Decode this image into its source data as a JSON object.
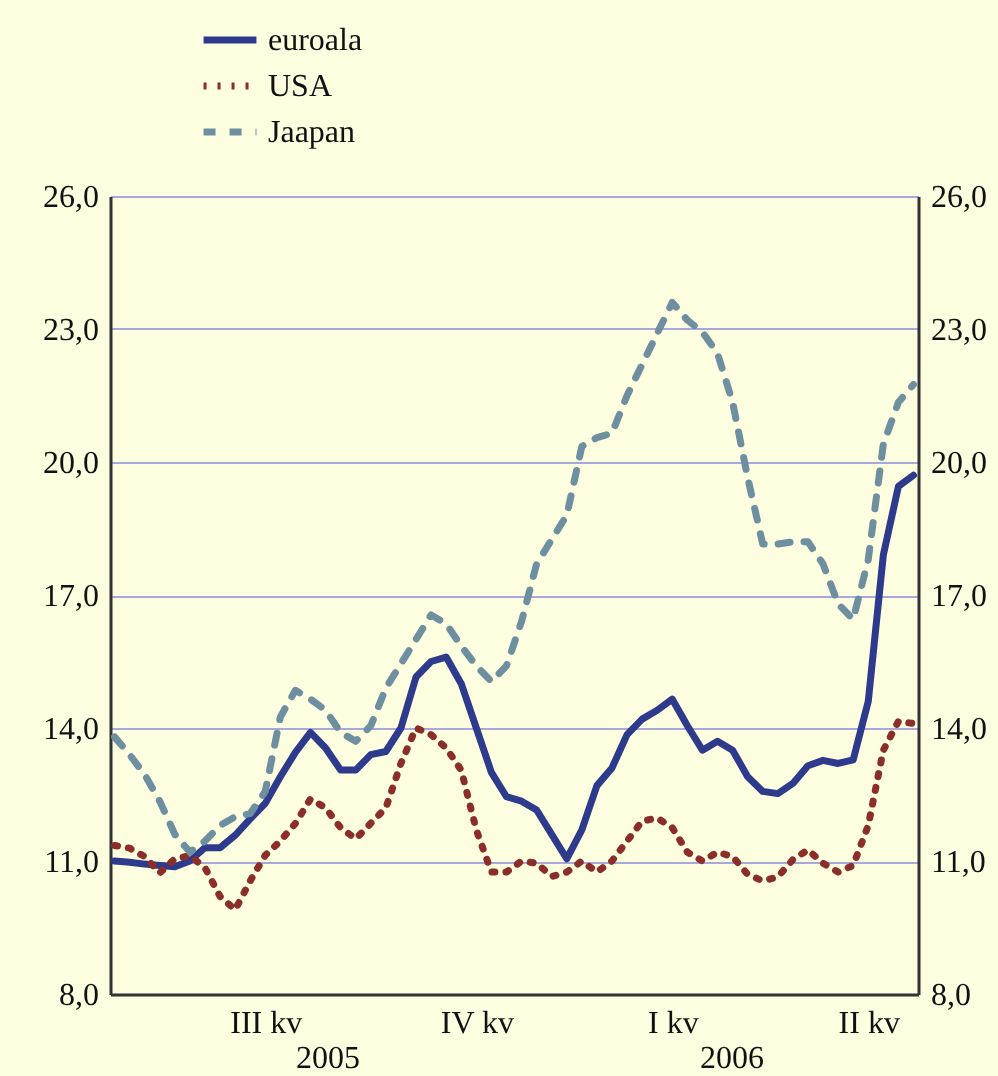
{
  "chart_data": {
    "type": "line",
    "categories": [
      null,
      null,
      null,
      null,
      null,
      null,
      null,
      null,
      null,
      null,
      "III kv",
      null,
      null,
      null,
      null,
      null,
      null,
      null,
      null,
      null,
      null,
      null,
      null,
      null,
      "IV kv",
      null,
      null,
      null,
      null,
      null,
      null,
      null,
      null,
      null,
      null,
      null,
      null,
      "I kv",
      null,
      null,
      null,
      null,
      null,
      null,
      null,
      null,
      null,
      null,
      null,
      null,
      "II kv",
      null,
      null,
      null
    ],
    "ylim": [
      8,
      26
    ],
    "yticks": [
      {
        "value": 8,
        "label": "8,0"
      },
      {
        "value": 11,
        "label": "11,0"
      },
      {
        "value": 14,
        "label": "14,0"
      },
      {
        "value": 17,
        "label": "17,0"
      },
      {
        "value": 20,
        "label": "20,0"
      },
      {
        "value": 23,
        "label": "23,0"
      },
      {
        "value": 26,
        "label": "26,0"
      }
    ],
    "y2lim": [
      8,
      26
    ],
    "y2ticks": [
      {
        "value": 8,
        "label": "8,0"
      },
      {
        "value": 11,
        "label": "11,0"
      },
      {
        "value": 14,
        "label": "14,0"
      },
      {
        "value": 17,
        "label": "17,0"
      },
      {
        "value": 20,
        "label": "20,0"
      },
      {
        "value": 23,
        "label": "23,0"
      },
      {
        "value": 26,
        "label": "26,0"
      }
    ],
    "grid": "y",
    "legend": "top left",
    "annotations": [
      "2005",
      "2006"
    ],
    "series": [
      {
        "name": "euroala",
        "color": "#2e3a8c",
        "line_style": "solid",
        "values": [
          11.0,
          10.97,
          10.93,
          10.9,
          10.87,
          11.0,
          11.3,
          11.3,
          11.58,
          11.95,
          12.3,
          12.9,
          13.45,
          13.9,
          13.55,
          13.05,
          13.05,
          13.4,
          13.47,
          14.0,
          15.15,
          15.5,
          15.6,
          15.0,
          14.0,
          13.0,
          12.45,
          12.35,
          12.15,
          11.6,
          11.05,
          11.7,
          12.7,
          13.1,
          13.85,
          14.2,
          14.4,
          14.65,
          14.05,
          13.5,
          13.7,
          13.5,
          12.9,
          12.57,
          12.52,
          12.75,
          13.15,
          13.27,
          13.2,
          13.28,
          14.6,
          17.9,
          19.45,
          19.7
        ]
      },
      {
        "name": "USA",
        "color": "#8b2e2a",
        "line_style": "dotted",
        "values": [
          11.35,
          11.29,
          11.1,
          10.73,
          11.05,
          11.12,
          10.85,
          10.2,
          9.9,
          10.55,
          11.13,
          11.45,
          11.85,
          12.4,
          12.2,
          11.75,
          11.5,
          11.85,
          12.2,
          13.2,
          14.0,
          13.85,
          13.55,
          13.05,
          11.7,
          10.75,
          10.75,
          11.0,
          10.95,
          10.65,
          10.75,
          11.0,
          10.75,
          11.0,
          11.45,
          11.9,
          11.97,
          11.75,
          11.2,
          11.0,
          11.2,
          11.1,
          10.7,
          10.55,
          10.64,
          11.03,
          11.25,
          10.95,
          10.75,
          10.9,
          11.8,
          13.5,
          14.15,
          14.1
        ]
      },
      {
        "name": "Jaapan",
        "color": "#6e8fa0",
        "line_style": "dashed",
        "values": [
          13.8,
          13.4,
          12.95,
          12.35,
          11.6,
          11.2,
          11.45,
          11.8,
          12.0,
          12.07,
          12.57,
          14.25,
          14.85,
          14.65,
          14.4,
          13.9,
          13.7,
          14.05,
          14.9,
          15.45,
          16.0,
          16.55,
          16.35,
          15.85,
          15.4,
          15.05,
          15.4,
          16.4,
          17.7,
          18.25,
          18.8,
          20.35,
          20.55,
          20.65,
          21.5,
          22.2,
          22.9,
          23.6,
          23.2,
          22.93,
          22.45,
          21.35,
          19.65,
          18.15,
          18.15,
          18.2,
          18.2,
          17.7,
          16.8,
          16.45,
          17.8,
          20.4,
          21.35,
          21.75
        ]
      }
    ]
  }
}
